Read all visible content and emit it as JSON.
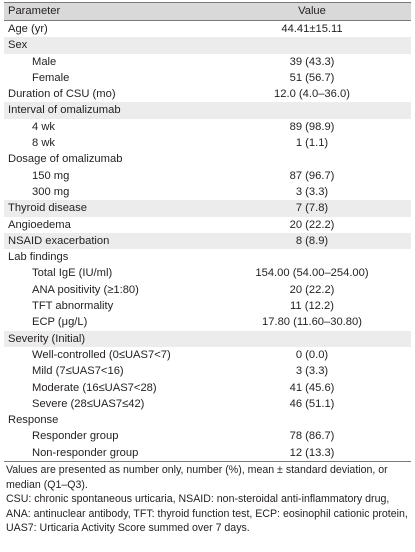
{
  "header": {
    "parameter": "Parameter",
    "value": "Value"
  },
  "rows": [
    {
      "label": "Age (yr)",
      "value": "44.41±15.11",
      "indent": false,
      "shaded": false
    },
    {
      "label": "Sex",
      "value": "",
      "indent": false,
      "shaded": true
    },
    {
      "label": "Male",
      "value": "39 (43.3)",
      "indent": true,
      "shaded": false
    },
    {
      "label": "Female",
      "value": "51 (56.7)",
      "indent": true,
      "shaded": false
    },
    {
      "label": "Duration of CSU (mo)",
      "value": "12.0 (4.0–36.0)",
      "indent": false,
      "shaded": false
    },
    {
      "label": "Interval of omalizumab",
      "value": "",
      "indent": false,
      "shaded": true
    },
    {
      "label": "4 wk",
      "value": "89 (98.9)",
      "indent": true,
      "shaded": false
    },
    {
      "label": "8 wk",
      "value": "1 (1.1)",
      "indent": true,
      "shaded": false
    },
    {
      "label": "Dosage of omalizumab",
      "value": "",
      "indent": false,
      "shaded": false
    },
    {
      "label": "150 mg",
      "value": "87 (96.7)",
      "indent": true,
      "shaded": false
    },
    {
      "label": "300 mg",
      "value": "3 (3.3)",
      "indent": true,
      "shaded": false
    },
    {
      "label": "Thyroid disease",
      "value": "7 (7.8)",
      "indent": false,
      "shaded": true
    },
    {
      "label": "Angioedema",
      "value": "20 (22.2)",
      "indent": false,
      "shaded": false
    },
    {
      "label": "NSAID exacerbation",
      "value": "8 (8.9)",
      "indent": false,
      "shaded": true
    },
    {
      "label": "Lab findings",
      "value": "",
      "indent": false,
      "shaded": false
    },
    {
      "label": "Total IgE (IU/ml)",
      "value": "154.00 (54.00–254.00)",
      "indent": true,
      "shaded": false
    },
    {
      "label": "ANA positivity (≥1:80)",
      "value": "20 (22.2)",
      "indent": true,
      "shaded": false
    },
    {
      "label": "TFT abnormality",
      "value": "11 (12.2)",
      "indent": true,
      "shaded": false
    },
    {
      "label": "ECP (μg/L)",
      "value": "17.80 (11.60–30.80)",
      "indent": true,
      "shaded": false
    },
    {
      "label": "Severity (Initial)",
      "value": "",
      "indent": false,
      "shaded": true
    },
    {
      "label": "Well-controlled (0≤UAS7<7)",
      "value": "0 (0.0)",
      "indent": true,
      "shaded": false
    },
    {
      "label": "Mild (7≤UAS7<16)",
      "value": "3 (3.3)",
      "indent": true,
      "shaded": false
    },
    {
      "label": "Moderate (16≤UAS7<28)",
      "value": "41 (45.6)",
      "indent": true,
      "shaded": false
    },
    {
      "label": "Severe (28≤UAS7≤42)",
      "value": "46 (51.1)",
      "indent": true,
      "shaded": false
    },
    {
      "label": "Response",
      "value": "",
      "indent": false,
      "shaded": false
    },
    {
      "label": "Responder group",
      "value": "78 (86.7)",
      "indent": true,
      "shaded": false
    },
    {
      "label": "Non-responder group",
      "value": "12 (13.3)",
      "indent": true,
      "shaded": false
    }
  ],
  "footnotes": [
    "Values are presented as number only, number (%), mean ± standard deviation, or median (Q1–Q3).",
    "CSU: chronic spontaneous urticaria, NSAID: non-steroidal anti-inflammatory drug, ANA: antinuclear antibody, TFT: thyroid function test, ECP: eosinophil cationic protein, UAS7: Urticaria Activity Score summed over 7 days."
  ],
  "colors": {
    "header_bg": "#d9d9d9",
    "shaded_bg": "#ececec",
    "rule": "#7a7a7a",
    "text": "#231f20"
  }
}
